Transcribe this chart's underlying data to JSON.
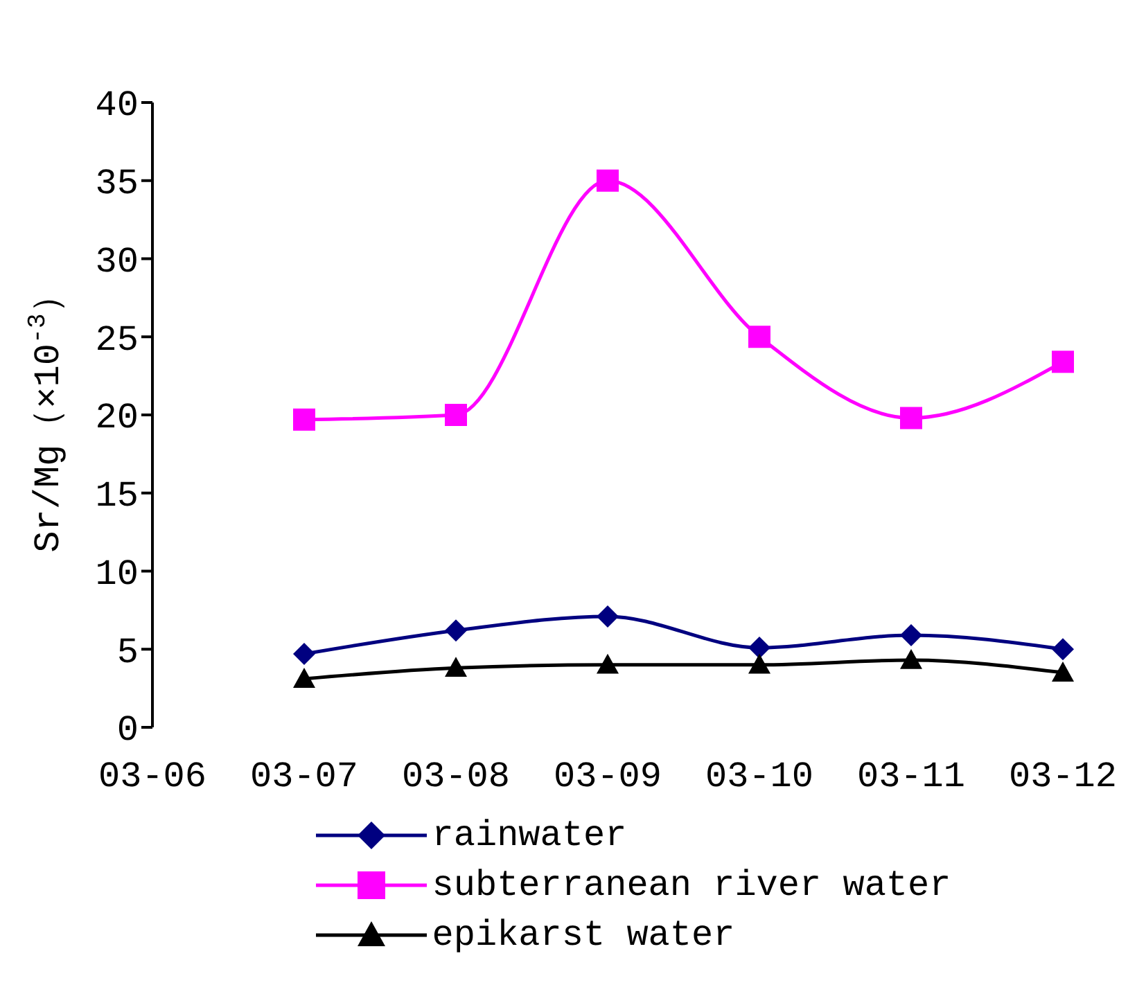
{
  "chart_data": {
    "type": "line",
    "ylabel": "Sr/Mg（×10$^{-3}$）",
    "categories": [
      "03-06",
      "03-07",
      "03-08",
      "03-09",
      "03-10",
      "03-11",
      "03-12"
    ],
    "ylim": [
      0,
      40
    ],
    "yticks": [
      0,
      5,
      10,
      15,
      20,
      25,
      30,
      35,
      40
    ],
    "legend": "bottom",
    "line_style": "solid",
    "series": [
      {
        "name": "rainwater",
        "color": "#000080",
        "marker": "diamond",
        "values": [
          null,
          4.7,
          6.2,
          7.1,
          5.1,
          5.9,
          5.0
        ]
      },
      {
        "name": "subterranean river water",
        "color": "#ff00ff",
        "marker": "square",
        "values": [
          null,
          19.7,
          20.0,
          35.0,
          25.0,
          19.8,
          23.4
        ]
      },
      {
        "name": "epikarst water",
        "color": "#000000",
        "marker": "triangle",
        "values": [
          null,
          3.1,
          3.8,
          4.0,
          4.0,
          4.3,
          3.5
        ]
      }
    ]
  }
}
